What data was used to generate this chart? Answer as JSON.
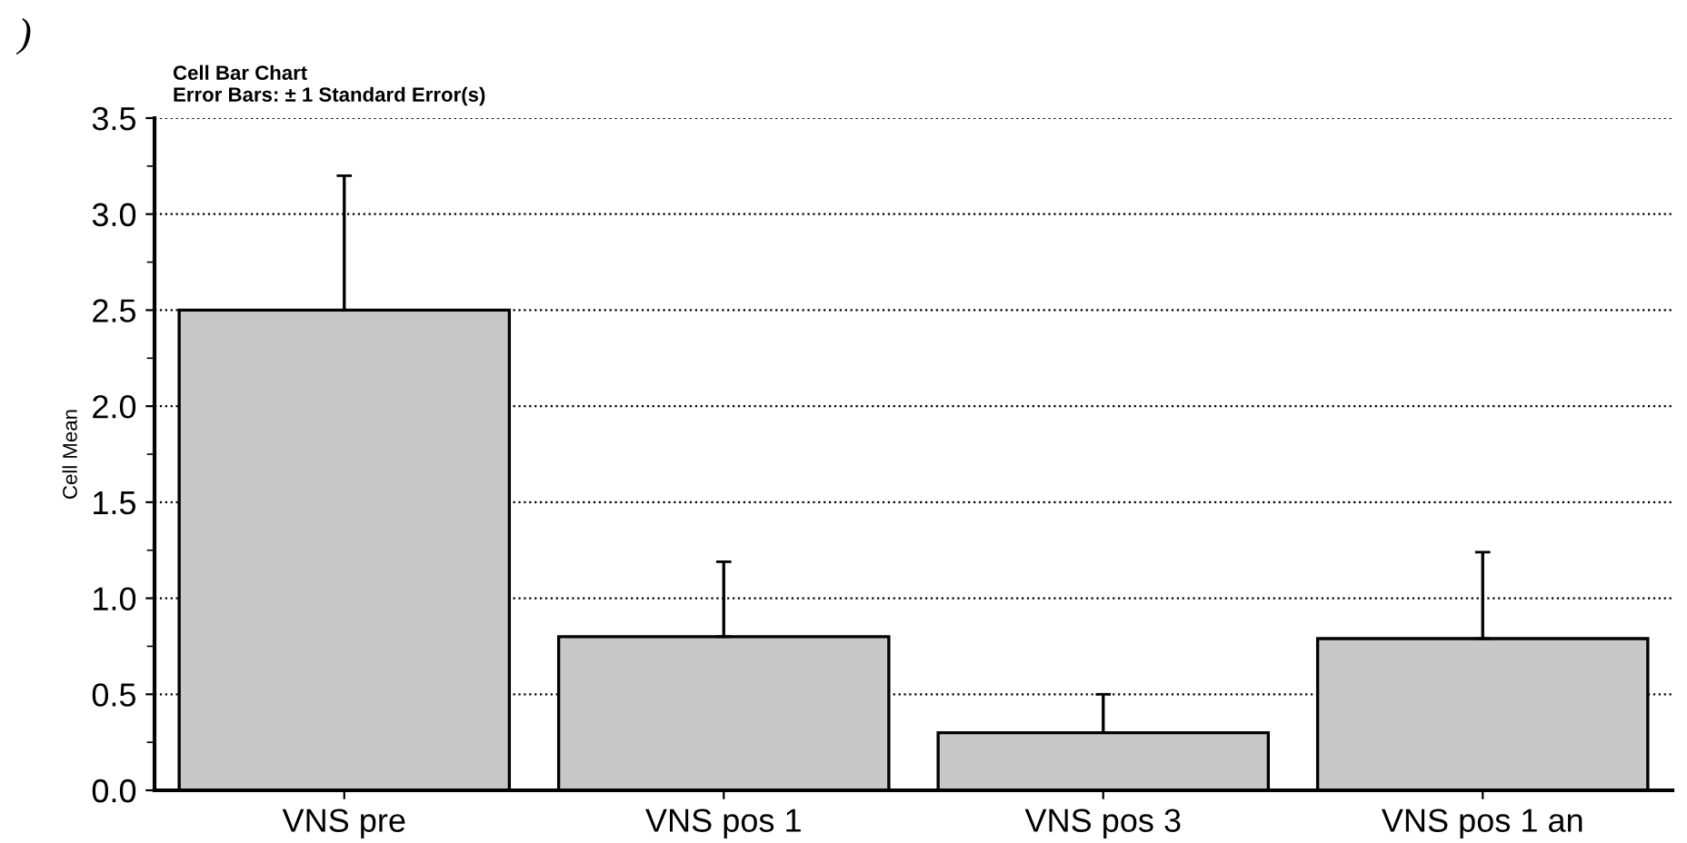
{
  "chart_data": {
    "type": "bar",
    "title": "Cell Bar Chart",
    "subtitle": "Error Bars: ± 1 Standard Error(s)",
    "ylabel": "Cell Mean",
    "annotations": [
      ")"
    ],
    "categories": [
      "VNS pre",
      "VNS pos 1",
      "VNS pos 3",
      "VNS pos 1 an"
    ],
    "values": [
      2.5,
      0.8,
      0.3,
      0.79
    ],
    "errors": [
      [
        2.5,
        3.2
      ],
      [
        0.8,
        1.19
      ],
      [
        0.3,
        0.5
      ],
      [
        0.79,
        1.24
      ]
    ],
    "color": "#c8c8c8",
    "ylim": [
      0,
      3.5
    ],
    "yticks": [
      {
        "value": 0,
        "label": "0.0"
      },
      0.5,
      {
        "value": 1,
        "label": "1.0"
      },
      1.5,
      {
        "value": 2,
        "label": "2.0"
      },
      2.5,
      {
        "value": 3,
        "label": "3.0"
      },
      3.5
    ],
    "grid": "y"
  }
}
